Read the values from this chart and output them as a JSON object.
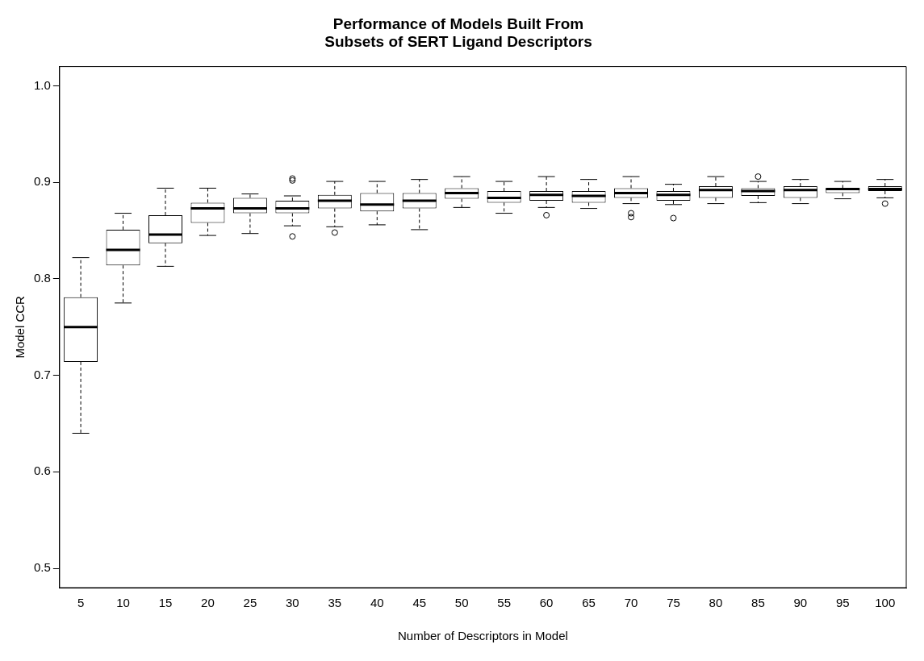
{
  "chart_data": {
    "type": "box",
    "title": "Performance of Models Built From\nSubsets of SERT Ligand Descriptors",
    "xlabel": "Number of Descriptors in Model",
    "ylabel": "Model CCR",
    "categories": [
      "5",
      "10",
      "15",
      "20",
      "25",
      "30",
      "35",
      "40",
      "45",
      "50",
      "55",
      "60",
      "65",
      "70",
      "75",
      "80",
      "85",
      "90",
      "95",
      "100"
    ],
    "boxes": [
      {
        "low": 0.64,
        "q1": 0.714,
        "median": 0.75,
        "q3": 0.781,
        "high": 0.822
      },
      {
        "low": 0.775,
        "q1": 0.814,
        "median": 0.83,
        "q3": 0.851,
        "high": 0.868
      },
      {
        "low": 0.813,
        "q1": 0.837,
        "median": 0.846,
        "q3": 0.866,
        "high": 0.894
      },
      {
        "low": 0.845,
        "q1": 0.858,
        "median": 0.873,
        "q3": 0.879,
        "high": 0.894
      },
      {
        "low": 0.847,
        "q1": 0.868,
        "median": 0.873,
        "q3": 0.884,
        "high": 0.888
      },
      {
        "low": 0.855,
        "q1": 0.868,
        "median": 0.873,
        "q3": 0.881,
        "high": 0.886,
        "outliers": [
          0.904,
          0.902,
          0.844
        ]
      },
      {
        "low": 0.854,
        "q1": 0.873,
        "median": 0.881,
        "q3": 0.887,
        "high": 0.901,
        "outliers": [
          0.848
        ]
      },
      {
        "low": 0.856,
        "q1": 0.87,
        "median": 0.877,
        "q3": 0.889,
        "high": 0.901
      },
      {
        "low": 0.851,
        "q1": 0.873,
        "median": 0.881,
        "q3": 0.889,
        "high": 0.903
      },
      {
        "low": 0.874,
        "q1": 0.883,
        "median": 0.889,
        "q3": 0.894,
        "high": 0.906
      },
      {
        "low": 0.868,
        "q1": 0.879,
        "median": 0.884,
        "q3": 0.891,
        "high": 0.901
      },
      {
        "low": 0.874,
        "q1": 0.881,
        "median": 0.887,
        "q3": 0.891,
        "high": 0.906,
        "outliers": [
          0.866
        ]
      },
      {
        "low": 0.873,
        "q1": 0.879,
        "median": 0.886,
        "q3": 0.891,
        "high": 0.903
      },
      {
        "low": 0.878,
        "q1": 0.884,
        "median": 0.889,
        "q3": 0.894,
        "high": 0.906,
        "outliers": [
          0.868,
          0.864
        ]
      },
      {
        "low": 0.877,
        "q1": 0.881,
        "median": 0.887,
        "q3": 0.891,
        "high": 0.898,
        "outliers": [
          0.863
        ]
      },
      {
        "low": 0.878,
        "q1": 0.884,
        "median": 0.892,
        "q3": 0.896,
        "high": 0.906
      },
      {
        "low": 0.879,
        "q1": 0.886,
        "median": 0.891,
        "q3": 0.894,
        "high": 0.901,
        "outliers": [
          0.906
        ]
      },
      {
        "low": 0.878,
        "q1": 0.884,
        "median": 0.892,
        "q3": 0.896,
        "high": 0.903
      },
      {
        "low": 0.883,
        "q1": 0.889,
        "median": 0.893,
        "q3": 0.894,
        "high": 0.901
      },
      {
        "low": 0.884,
        "q1": 0.891,
        "median": 0.893,
        "q3": 0.896,
        "high": 0.903,
        "outliers": [
          0.878
        ]
      }
    ],
    "ylim": [
      0.48,
      1.02
    ],
    "yticks": [
      0.5,
      0.6,
      0.7,
      0.8,
      0.9,
      {
        "value": 1,
        "label": "1.0"
      }
    ],
    "grid": false
  }
}
